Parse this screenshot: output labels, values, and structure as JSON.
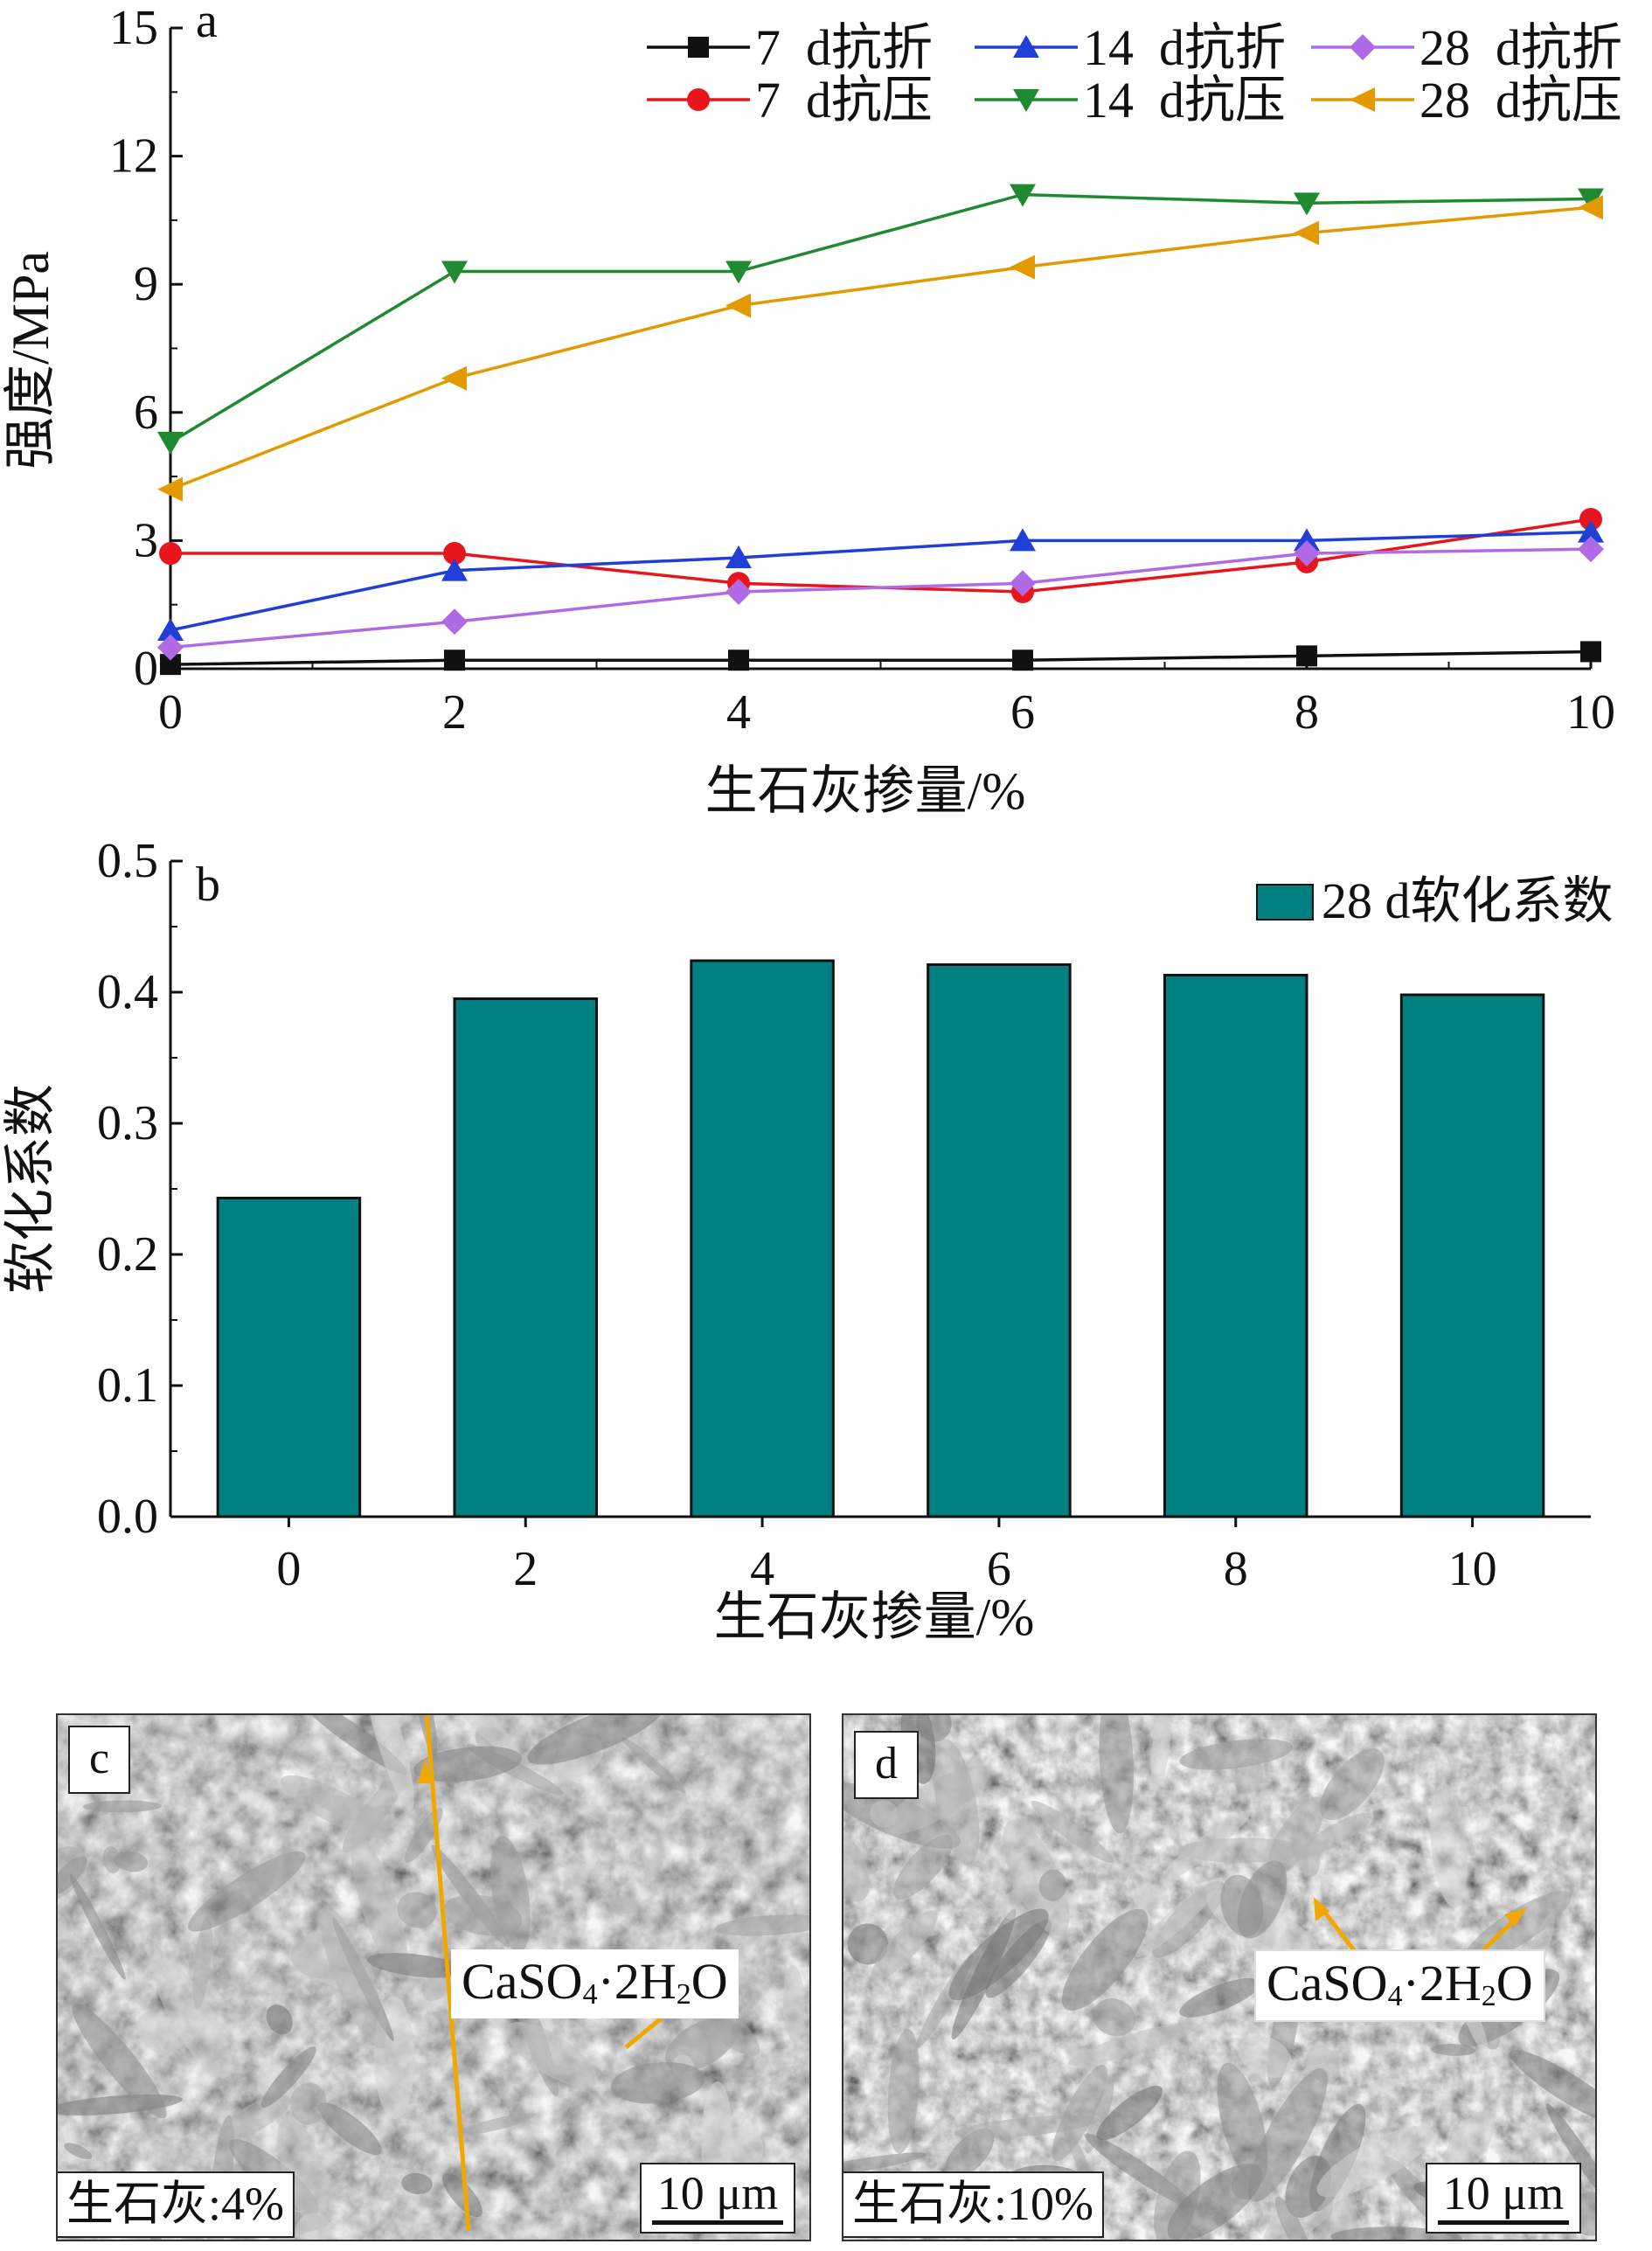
{
  "chart_data": [
    {
      "panel": "a",
      "type": "line",
      "title": "",
      "xlabel": "生石灰掺量/%",
      "ylabel": "强度/MPa",
      "x": [
        0,
        2,
        4,
        6,
        8,
        10
      ],
      "xlim": [
        0,
        10
      ],
      "ylim": [
        0,
        15
      ],
      "xticks": [
        "0",
        "2",
        "4",
        "6",
        "8",
        "10"
      ],
      "yticks": [
        "0",
        "3",
        "6",
        "9",
        "12",
        "15"
      ],
      "legend_position": "top-right",
      "grid": false,
      "series": [
        {
          "name": "7  d抗折",
          "color": "#111111",
          "marker": "square",
          "values": [
            0.1,
            0.2,
            0.2,
            0.2,
            0.3,
            0.4
          ]
        },
        {
          "name": "7  d抗压",
          "color": "#e8161c",
          "marker": "circle",
          "values": [
            2.7,
            2.7,
            2.0,
            1.8,
            2.5,
            3.5
          ]
        },
        {
          "name": "14  d抗折",
          "color": "#1f3fd6",
          "marker": "triangle-up",
          "values": [
            0.9,
            2.3,
            2.6,
            3.0,
            3.0,
            3.2
          ]
        },
        {
          "name": "14  d抗压",
          "color": "#1f8a2f",
          "marker": "triangle-down",
          "values": [
            5.3,
            9.3,
            9.3,
            11.1,
            10.9,
            11.0
          ]
        },
        {
          "name": "28  d抗折",
          "color": "#b06ae6",
          "marker": "diamond",
          "values": [
            0.5,
            1.1,
            1.8,
            2.0,
            2.7,
            2.8
          ]
        },
        {
          "name": "28  d抗压",
          "color": "#e29a00",
          "marker": "triangle-left",
          "values": [
            4.2,
            6.8,
            8.5,
            9.4,
            10.2,
            10.8
          ]
        }
      ]
    },
    {
      "panel": "b",
      "type": "bar",
      "title": "",
      "xlabel": "生石灰掺量/%",
      "ylabel": "软化系数",
      "categories": [
        "0",
        "2",
        "4",
        "6",
        "8",
        "10"
      ],
      "ylim": [
        0,
        0.5
      ],
      "yticks": [
        "0.0",
        "0.1",
        "0.2",
        "0.3",
        "0.4",
        "0.5"
      ],
      "legend_position": "top-right",
      "grid": false,
      "series": [
        {
          "name": "28 d软化系数",
          "color": "#008080",
          "values": [
            0.243,
            0.395,
            0.424,
            0.421,
            0.413,
            0.398
          ]
        }
      ]
    }
  ],
  "panels": {
    "a": {
      "tag": "a"
    },
    "b": {
      "tag": "b"
    },
    "c": {
      "tag": "c",
      "mineral_prefix": "CaSO",
      "mineral_sub1": "4",
      "mineral_mid": "·2H",
      "mineral_sub2": "2",
      "mineral_suffix": "O",
      "dosage": "生石灰:4%",
      "scale": "10 μm"
    },
    "d": {
      "tag": "d",
      "mineral_prefix": "CaSO",
      "mineral_sub1": "4",
      "mineral_mid": "·2H",
      "mineral_sub2": "2",
      "mineral_suffix": "O",
      "dosage": "生石灰:10%",
      "scale": "10 μm"
    }
  },
  "colors": {
    "arrow": "#f0a800",
    "sem_dark": "#4a4a4a",
    "sem_light": "#9a9a9a"
  }
}
